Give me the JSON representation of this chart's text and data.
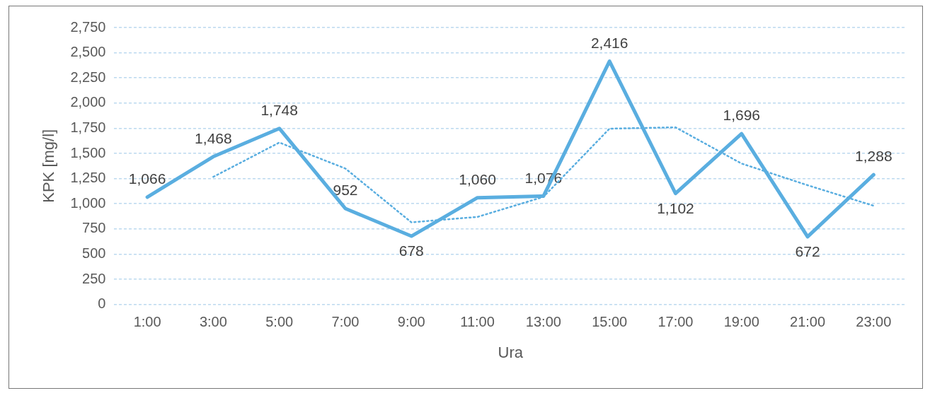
{
  "chart_data": {
    "type": "line",
    "xlabel": "Ura",
    "ylabel": "KPK [mg/l]",
    "categories": [
      "1:00",
      "3:00",
      "5:00",
      "7:00",
      "9:00",
      "11:00",
      "13:00",
      "15:00",
      "17:00",
      "19:00",
      "21:00",
      "23:00"
    ],
    "series": [
      {
        "color": "#5aaee0",
        "values": [
          1066,
          1468,
          1748,
          952,
          678,
          1060,
          1076,
          2416,
          1102,
          1696,
          672,
          1288
        ],
        "value_labels": [
          "1,066",
          "1,468",
          "1,748",
          "952",
          "678",
          "1,060",
          "1,076",
          "2,416",
          "1,102",
          "1,696",
          "672",
          "1,288"
        ],
        "line_style": "solid"
      },
      {
        "color": "#5aaee0",
        "values": [
          null,
          1267,
          1608,
          1350,
          815,
          869,
          1068,
          1746,
          1759,
          1399,
          1184,
          980
        ],
        "line_style": "dotted"
      }
    ],
    "ylim": [
      0,
      2750
    ],
    "yticks": [
      0,
      250,
      500,
      750,
      {
        "value": 1000,
        "label": "1,000"
      },
      {
        "value": 1250,
        "label": "1,250"
      },
      {
        "value": 1500,
        "label": "1,500"
      },
      {
        "value": 1750,
        "label": "1,750"
      },
      {
        "value": 2000,
        "label": "2,000"
      },
      {
        "value": 2250,
        "label": "2,250"
      },
      {
        "value": 2500,
        "label": "2,500"
      },
      {
        "value": 2750,
        "label": "2,750"
      }
    ],
    "grid": "y",
    "marker": "none",
    "legend": false
  }
}
